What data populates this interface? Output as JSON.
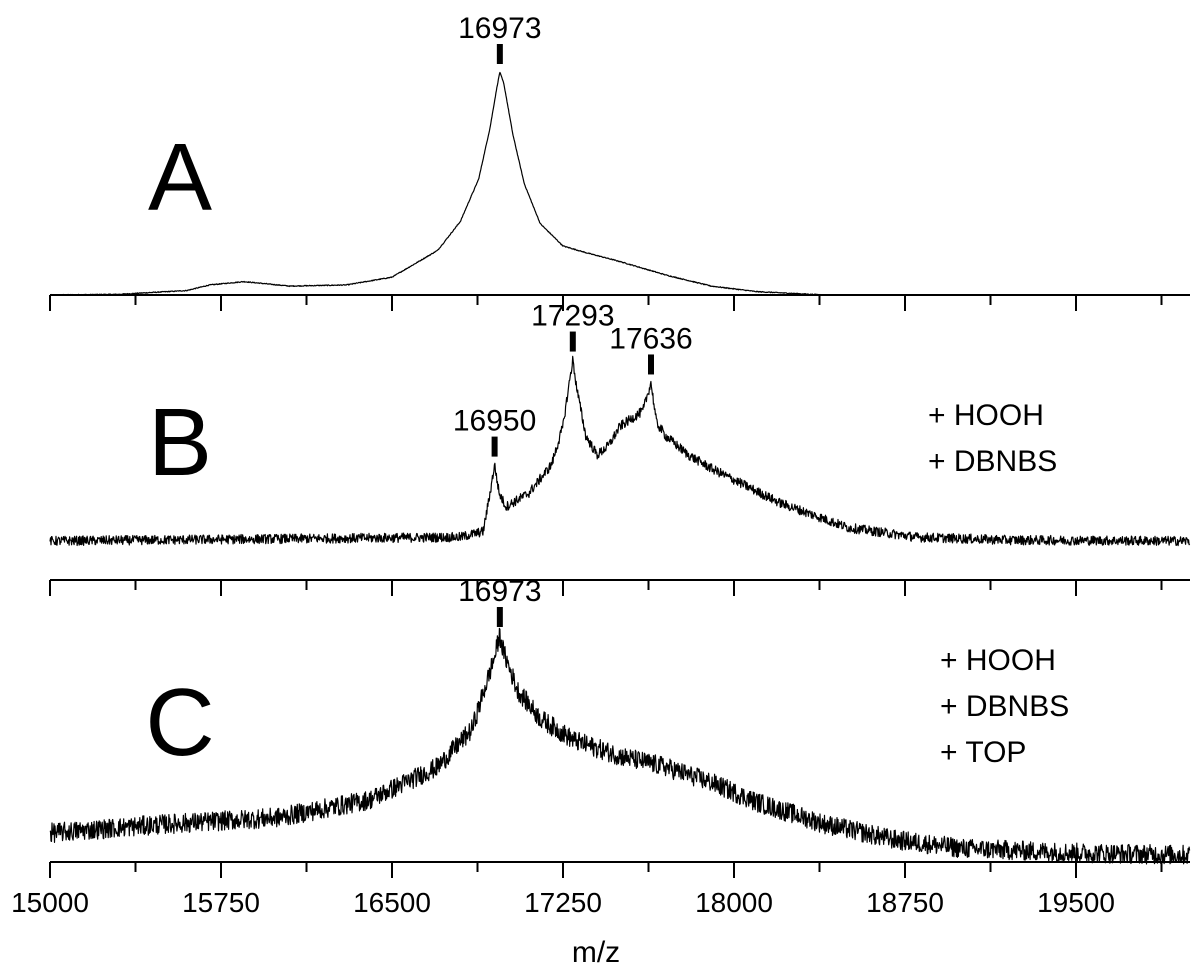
{
  "chart_data": {
    "type": "line",
    "xlabel": "m/z",
    "xlim": [
      15000,
      20000
    ],
    "x_major_ticks": [
      15000,
      15750,
      16500,
      17250,
      18000,
      18750,
      19500
    ],
    "x_minor_step": 375,
    "shared_x_axis": true,
    "panels": [
      {
        "label": "A",
        "annotations": [],
        "peaks": [
          {
            "x": 16973,
            "label": "16973"
          }
        ],
        "noise": 0.002,
        "series": {
          "x": [
            15000,
            15300,
            15600,
            15700,
            15850,
            15950,
            16050,
            16300,
            16500,
            16700,
            16800,
            16880,
            16930,
            16960,
            16973,
            16990,
            17030,
            17080,
            17150,
            17250,
            17350,
            17500,
            17700,
            17900,
            18100,
            18400,
            20000
          ],
          "y": [
            0.0,
            0.003,
            0.02,
            0.045,
            0.06,
            0.05,
            0.04,
            0.045,
            0.08,
            0.2,
            0.33,
            0.52,
            0.75,
            0.93,
            1.0,
            0.95,
            0.72,
            0.5,
            0.32,
            0.22,
            0.19,
            0.15,
            0.09,
            0.04,
            0.015,
            0.0,
            0.0
          ]
        }
      },
      {
        "label": "B",
        "annotations": [
          "+ HOOH",
          "+ DBNBS"
        ],
        "peaks": [
          {
            "x": 16950,
            "label": "16950"
          },
          {
            "x": 17293,
            "label": "17293"
          },
          {
            "x": 17636,
            "label": "17636"
          }
        ],
        "noise": 0.025,
        "series": {
          "x": [
            15000,
            16800,
            16900,
            16930,
            16950,
            16970,
            17000,
            17100,
            17200,
            17250,
            17280,
            17293,
            17310,
            17350,
            17400,
            17450,
            17500,
            17600,
            17636,
            17660,
            17700,
            17800,
            17900,
            18000,
            18200,
            18500,
            18800,
            19200,
            20000
          ],
          "y": [
            0.0,
            0.02,
            0.05,
            0.25,
            0.4,
            0.25,
            0.18,
            0.25,
            0.4,
            0.6,
            0.85,
            0.95,
            0.8,
            0.55,
            0.45,
            0.5,
            0.6,
            0.68,
            0.83,
            0.62,
            0.55,
            0.45,
            0.38,
            0.32,
            0.2,
            0.07,
            0.02,
            0.005,
            0.0
          ]
        }
      },
      {
        "label": "C",
        "annotations": [
          "+ HOOH",
          "+ DBNBS",
          "+ TOP"
        ],
        "peaks": [
          {
            "x": 16973,
            "label": "16973"
          }
        ],
        "noise": 0.045,
        "series": {
          "x": [
            15000,
            15500,
            16000,
            16400,
            16700,
            16850,
            16950,
            16973,
            16990,
            17050,
            17150,
            17300,
            17500,
            17700,
            17900,
            18100,
            18400,
            18700,
            19000,
            19500,
            20000
          ],
          "y": [
            0.1,
            0.14,
            0.17,
            0.25,
            0.4,
            0.57,
            0.9,
            1.0,
            0.92,
            0.75,
            0.62,
            0.52,
            0.45,
            0.4,
            0.33,
            0.24,
            0.14,
            0.07,
            0.03,
            0.01,
            0.0
          ]
        }
      }
    ]
  }
}
